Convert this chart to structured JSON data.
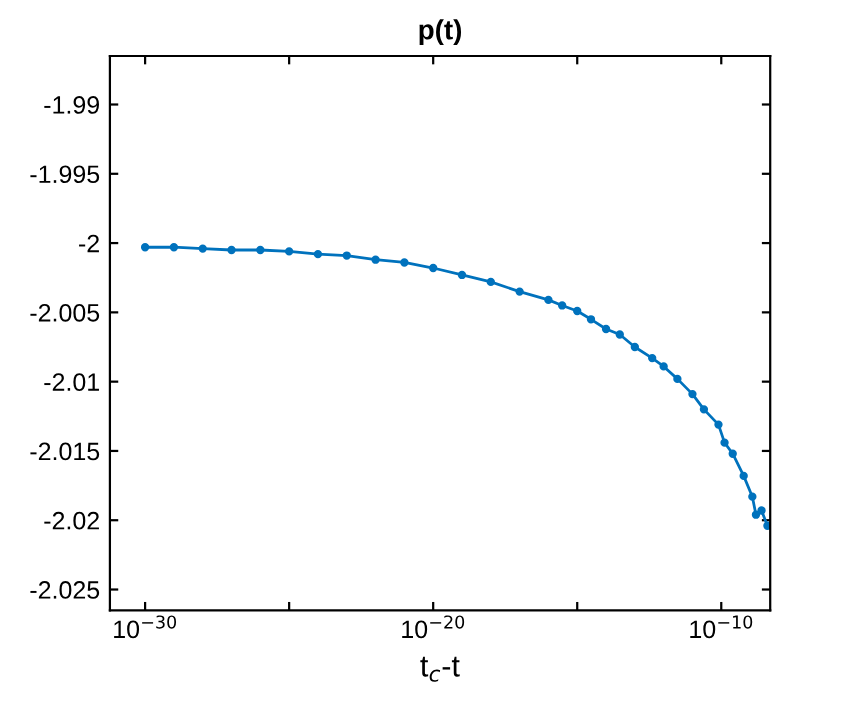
{
  "chart_data": {
    "type": "line",
    "title": "p(t)",
    "xlabel": "t$_{c}$-t",
    "log": "x",
    "x": [
      1e-30,
      1e-29,
      1e-28,
      1e-27,
      1e-26,
      1e-25,
      1e-24,
      1e-23,
      1e-22,
      1e-21,
      1e-20,
      1e-19,
      1e-18,
      1e-17,
      1e-16,
      3e-16,
      1e-15,
      3e-15,
      1e-14,
      3e-14,
      1e-13,
      4e-13,
      1e-12,
      3e-12,
      1e-11,
      2.5e-11,
      8e-11,
      1.3e-10,
      2.5e-10,
      6e-10,
      1.2e-09,
      1.6e-09,
      2.5e-09,
      4e-09
    ],
    "series": [
      {
        "color": "#0072bd",
        "values": [
          -2.0003,
          -2.0003,
          -2.0004,
          -2.0005,
          -2.0005,
          -2.0006,
          -2.0008,
          -2.0009,
          -2.0012,
          -2.0014,
          -2.0018,
          -2.0023,
          -2.0028,
          -2.0035,
          -2.0041,
          -2.0045,
          -2.0049,
          -2.0055,
          -2.0062,
          -2.0066,
          -2.0075,
          -2.0083,
          -2.0089,
          -2.0098,
          -2.0109,
          -2.012,
          -2.0131,
          -2.0144,
          -2.0152,
          -2.0168,
          -2.0183,
          -2.0196,
          -2.0193,
          -2.0204
        ]
      }
    ],
    "xlim": [
      6e-32,
      5e-09
    ],
    "ylim": [
      -2.0265,
      -1.9865
    ],
    "xticks": [
      {
        "value": 1e-30,
        "label": "10$^{−30}$"
      },
      {
        "value": 1e-25,
        "label": null
      },
      {
        "value": 1e-20,
        "label": "10$^{−20}$"
      },
      {
        "value": 1e-15,
        "label": null
      },
      {
        "value": 1e-10,
        "label": "10$^{−10}$"
      }
    ],
    "yticks": [
      -2.025,
      -2.02,
      -2.015,
      -2.01,
      -2.005,
      -2,
      -1.995,
      -1.99
    ],
    "marker": "circle",
    "line_style": "solid"
  }
}
